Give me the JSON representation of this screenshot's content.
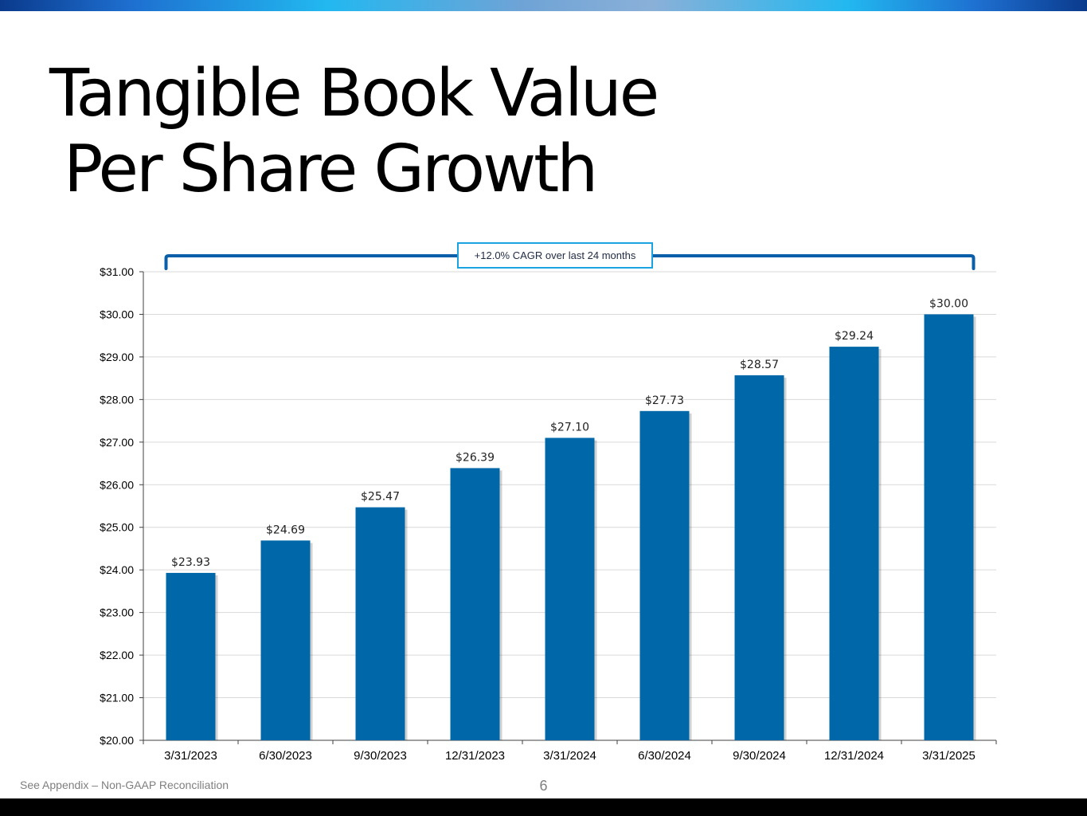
{
  "slide": {
    "title_line1": "Tangible Book Value",
    "title_line2": "Per Share Growth",
    "footnote": "See Appendix – Non-GAAP Reconciliation",
    "page_number": "6"
  },
  "colors": {
    "bar": "#0068a8",
    "bracket": "#0b5ea8",
    "callout_border": "#1aa3e0",
    "grid": "#d9d9d9",
    "axis": "#404040"
  },
  "chart_data": {
    "type": "bar",
    "categories": [
      "3/31/2023",
      "6/30/2023",
      "9/30/2023",
      "12/31/2023",
      "3/31/2024",
      "6/30/2024",
      "9/30/2024",
      "12/31/2024",
      "3/31/2025"
    ],
    "values": [
      23.93,
      24.69,
      25.47,
      26.39,
      27.1,
      27.73,
      28.57,
      29.24,
      30.0
    ],
    "data_labels": [
      "$23.93",
      "$24.69",
      "$25.47",
      "$26.39",
      "$27.10",
      "$27.73",
      "$28.57",
      "$29.24",
      "$30.00"
    ],
    "ylim": [
      20,
      31
    ],
    "y_ticks": [
      "$20.00",
      "$21.00",
      "$22.00",
      "$23.00",
      "$24.00",
      "$25.00",
      "$26.00",
      "$27.00",
      "$28.00",
      "$29.00",
      "$30.00",
      "$31.00"
    ],
    "grid": true,
    "legend": "none",
    "annotation": "+12.0% CAGR over last 24 months"
  }
}
